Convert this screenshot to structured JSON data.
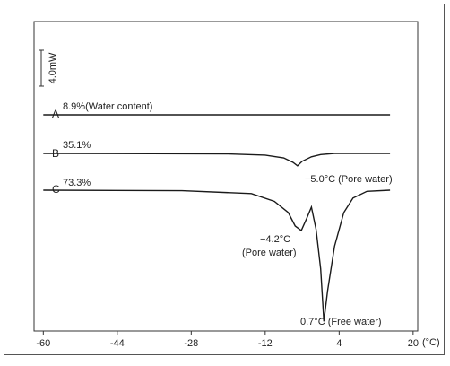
{
  "chart_data": {
    "type": "line",
    "title": "",
    "xlabel": "",
    "ylabel": "",
    "x_unit": "(°C)",
    "x_ticks": [
      "-60",
      "-44",
      "-28",
      "-12",
      "4",
      "20"
    ],
    "xlim": [
      -62,
      21
    ],
    "scale_bar_label": "4.0mW",
    "series": [
      {
        "name": "A",
        "curve_label": "A",
        "value_label": "8.9%(Water content)",
        "points": [
          [
            -60,
            0.0
          ],
          [
            -8,
            0.0
          ],
          [
            -5,
            0.0
          ],
          [
            -2,
            0.0
          ],
          [
            3,
            0.0
          ],
          [
            15,
            0.0
          ]
        ]
      },
      {
        "name": "B",
        "curve_label": "B",
        "value_label": "35.1%",
        "points": [
          [
            -60,
            0.0
          ],
          [
            -20,
            -0.05
          ],
          [
            -12,
            -0.15
          ],
          [
            -8,
            -0.4
          ],
          [
            -6,
            -0.8
          ],
          [
            -5,
            -1.1
          ],
          [
            -4,
            -0.7
          ],
          [
            -2,
            -0.3
          ],
          [
            0,
            -0.1
          ],
          [
            3,
            0.0
          ],
          [
            15,
            0.0
          ]
        ]
      },
      {
        "name": "C",
        "curve_label": "C",
        "value_label": "73.3%",
        "points": [
          [
            -60,
            0.0
          ],
          [
            -30,
            -0.05
          ],
          [
            -15,
            -0.3
          ],
          [
            -10,
            -1.0
          ],
          [
            -7,
            -2.0
          ],
          [
            -5.5,
            -3.2
          ],
          [
            -4.2,
            -3.6
          ],
          [
            -3,
            -2.5
          ],
          [
            -2,
            -1.5
          ],
          [
            -1,
            -3.5
          ],
          [
            0,
            -7.0
          ],
          [
            0.7,
            -11.7
          ],
          [
            1.5,
            -9.0
          ],
          [
            3,
            -5.0
          ],
          [
            5,
            -2.0
          ],
          [
            7,
            -0.7
          ],
          [
            10,
            -0.1
          ],
          [
            15,
            0.0
          ]
        ]
      }
    ],
    "annotations": [
      {
        "series": "B",
        "text": "−5.0°C (Pore water)"
      },
      {
        "series": "C",
        "text_lines": [
          "−4.2°C",
          "(Pore water)"
        ]
      },
      {
        "series": "C",
        "text": "0.7°C (Free water)"
      }
    ],
    "grid": false,
    "colors": {
      "line": "#1a1a1a",
      "axes": "#333333"
    }
  }
}
